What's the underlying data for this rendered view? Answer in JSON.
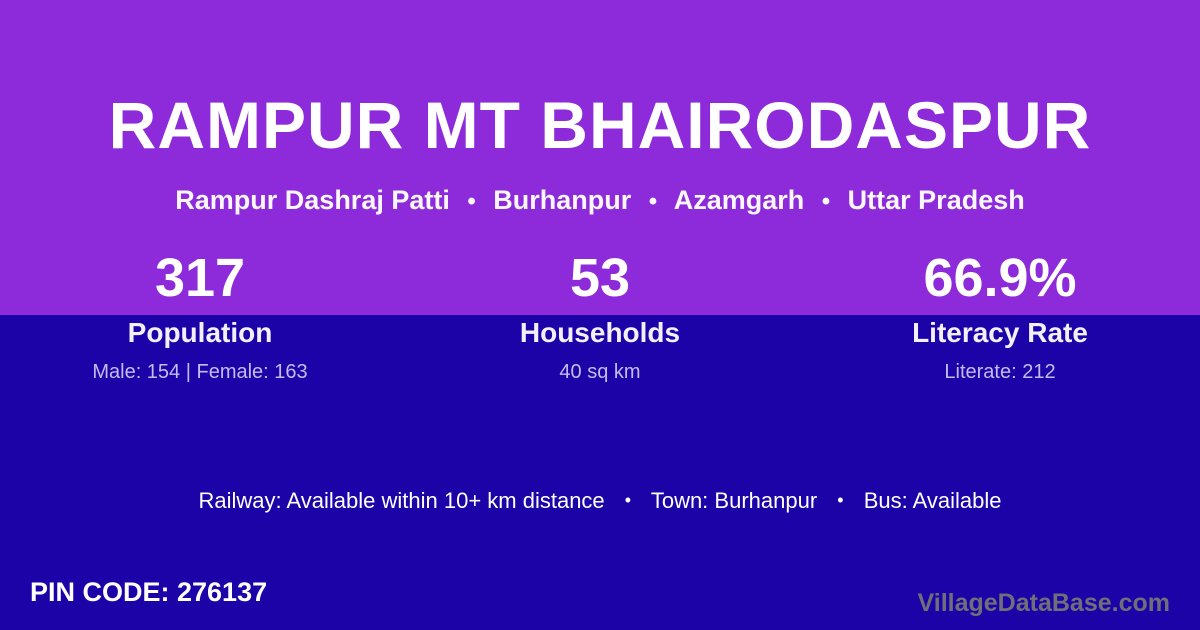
{
  "colors": {
    "top_band": "#8d2ad9",
    "bottom_band": "#1c03a8",
    "primary_text": "#ffffff",
    "muted_text": "#c5bbee",
    "watermark_text": "#6f6f7a"
  },
  "header": {
    "title": "RAMPUR MT BHAIRODASPUR",
    "separator": "•",
    "breadcrumb_parts": [
      "Rampur Dashraj Patti",
      "Burhanpur",
      "Azamgarh",
      "Uttar Pradesh"
    ]
  },
  "stats": {
    "items": [
      {
        "value": "317",
        "label": "Population",
        "sub": "Male: 154 | Female: 163"
      },
      {
        "value": "53",
        "label": "Households",
        "sub": "40 sq km"
      },
      {
        "value": "66.9%",
        "label": "Literacy Rate",
        "sub": "Literate: 212"
      }
    ]
  },
  "info_line": {
    "separator": "•",
    "items": [
      "Railway: Available within 10+ km distance",
      "Town: Burhanpur",
      "Bus: Available"
    ]
  },
  "footer": {
    "pin_code": "PIN CODE: 276137",
    "watermark": "VillageDataBase.com"
  }
}
